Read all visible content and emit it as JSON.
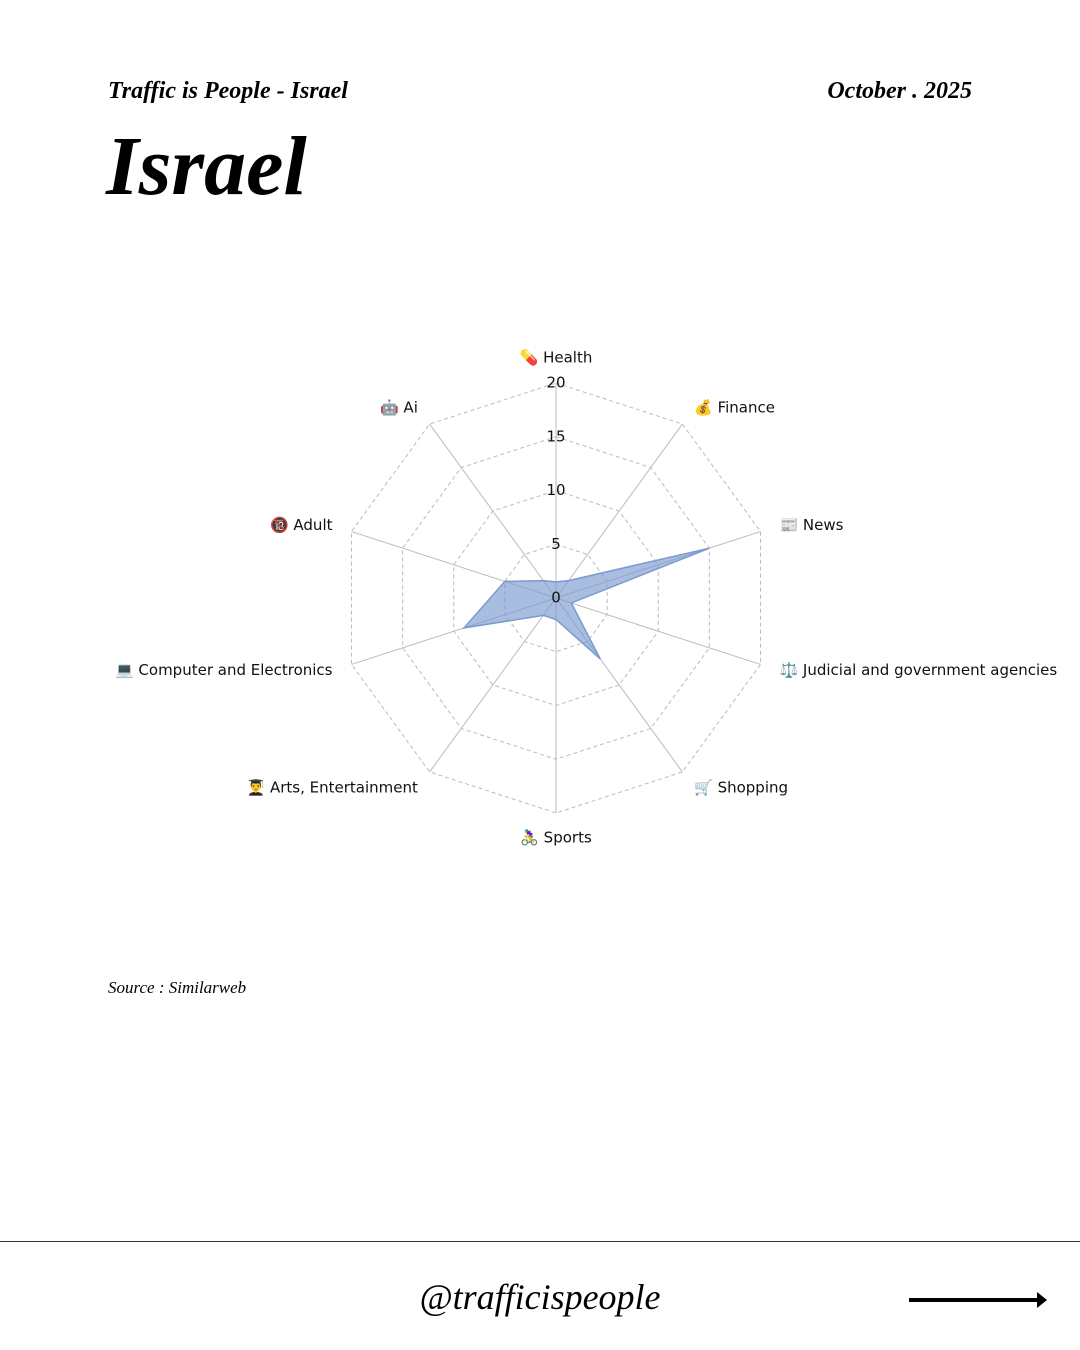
{
  "header": {
    "brand": "Traffic is People - Israel",
    "date": "October . 2025"
  },
  "chart_data": {
    "type": "radar",
    "title": "Israel",
    "categories": [
      "💊 Health",
      "💰 Finance",
      "📰 News",
      "⚖️ Judicial and government agencies",
      "🛒 Shopping",
      "🚴‍♀️ Sports",
      "👨‍🎓 Arts, Entertainment",
      "💻 Computer and Electronics",
      "🔞 Adult",
      "🤖 Ai"
    ],
    "values": [
      1.5,
      2,
      15,
      1.5,
      7,
      2,
      2,
      9,
      5,
      2
    ],
    "ylim": [
      0,
      20
    ],
    "yticks": [
      0,
      5,
      10,
      15,
      20
    ],
    "color": "#7b9ad0",
    "grid": true,
    "source": "Source : Similarweb"
  },
  "footer": {
    "handle": "@trafficispeople"
  }
}
